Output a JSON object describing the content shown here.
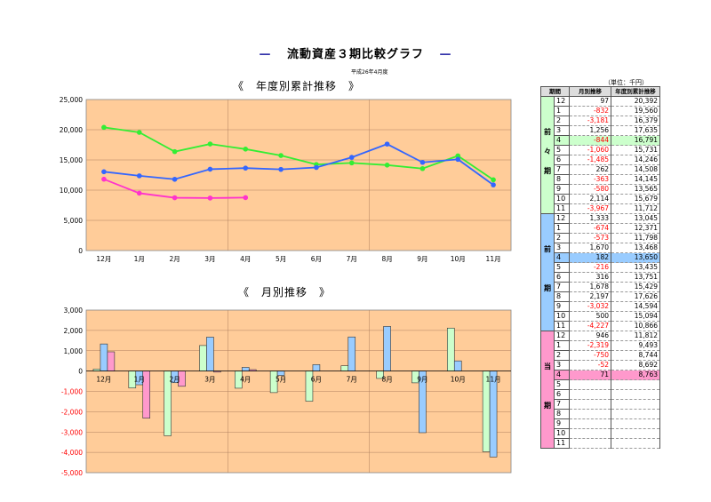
{
  "title": "流動資産３期比較グラフ",
  "title_bar": "—",
  "date_label": "平成26年4月度",
  "unit_label": "（単位：千円）",
  "colors": {
    "plot_bg": "#ffcc99",
    "current": "#ff33cc",
    "prev": "#3366ff",
    "prev2": "#33ee33",
    "prev2_fill": "#ccffcc",
    "prev_fill": "#99ccff",
    "current_fill": "#ff99cc"
  },
  "chart_data": [
    {
      "type": "line",
      "title": "《　年度別累計推移　》",
      "categories": [
        "12月",
        "1月",
        "2月",
        "3月",
        "4月",
        "5月",
        "6月",
        "7月",
        "8月",
        "9月",
        "10月",
        "11月"
      ],
      "ylim": [
        0,
        25000
      ],
      "yticks": [
        "0",
        "5,000",
        "10,000",
        "15,000",
        "20,000",
        "25,000"
      ],
      "grid": true,
      "series": [
        {
          "key": "prev2",
          "values": [
            20392,
            19560,
            16379,
            17635,
            16791,
            15731,
            14246,
            14508,
            14145,
            13565,
            15679,
            11712
          ]
        },
        {
          "key": "prev",
          "values": [
            13045,
            12371,
            11798,
            13468,
            13650,
            13435,
            13751,
            15429,
            17626,
            14594,
            15094,
            10866
          ]
        },
        {
          "key": "current",
          "values": [
            11812,
            9493,
            8744,
            8692,
            8763,
            null,
            null,
            null,
            null,
            null,
            null,
            null
          ]
        }
      ]
    },
    {
      "type": "bar",
      "title": "《　月別推移　》",
      "categories": [
        "12月",
        "1月",
        "2月",
        "3月",
        "4月",
        "5月",
        "6月",
        "7月",
        "8月",
        "9月",
        "10月",
        "11月"
      ],
      "ylim": [
        -5000,
        3000
      ],
      "yticks": [
        "-5,000",
        "-4,000",
        "-3,000",
        "-2,000",
        "-1,000",
        "0",
        "1,000",
        "2,000",
        "3,000"
      ],
      "grid": true,
      "series": [
        {
          "key": "prev2",
          "values": [
            97,
            -832,
            -3181,
            1256,
            -844,
            -1060,
            -1485,
            262,
            -363,
            -580,
            2114,
            -3967
          ]
        },
        {
          "key": "prev",
          "values": [
            1333,
            -674,
            -573,
            1670,
            182,
            -216,
            316,
            1678,
            2197,
            -3032,
            500,
            -4227
          ]
        },
        {
          "key": "current",
          "values": [
            946,
            -2319,
            -750,
            -52,
            71,
            null,
            null,
            null,
            null,
            null,
            null,
            null
          ]
        }
      ]
    }
  ],
  "table": {
    "headers": [
      "期間",
      "月別推移",
      "年度別累計推移"
    ],
    "groups": [
      {
        "label": [
          "前",
          "々",
          "期"
        ],
        "color": "#ccffcc",
        "highlight": "#ccffcc",
        "rows": [
          [
            "12",
            "97",
            "20,392"
          ],
          [
            "1",
            "-832",
            "19,560"
          ],
          [
            "2",
            "-3,181",
            "16,379"
          ],
          [
            "3",
            "1,256",
            "17,635"
          ],
          [
            "4",
            "-844",
            "16,791"
          ],
          [
            "5",
            "-1,060",
            "15,731"
          ],
          [
            "6",
            "-1,485",
            "14,246"
          ],
          [
            "7",
            "262",
            "14,508"
          ],
          [
            "8",
            "-363",
            "14,145"
          ],
          [
            "9",
            "-580",
            "13,565"
          ],
          [
            "10",
            "2,114",
            "15,679"
          ],
          [
            "11",
            "-3,967",
            "11,712"
          ]
        ]
      },
      {
        "label": [
          "前",
          "",
          "期"
        ],
        "color": "#99ccff",
        "highlight": "#99ccff",
        "rows": [
          [
            "12",
            "1,333",
            "13,045"
          ],
          [
            "1",
            "-674",
            "12,371"
          ],
          [
            "2",
            "-573",
            "11,798"
          ],
          [
            "3",
            "1,670",
            "13,468"
          ],
          [
            "4",
            "182",
            "13,650"
          ],
          [
            "5",
            "-216",
            "13,435"
          ],
          [
            "6",
            "316",
            "13,751"
          ],
          [
            "7",
            "1,678",
            "15,429"
          ],
          [
            "8",
            "2,197",
            "17,626"
          ],
          [
            "9",
            "-3,032",
            "14,594"
          ],
          [
            "10",
            "500",
            "15,094"
          ],
          [
            "11",
            "-4,227",
            "10,866"
          ]
        ]
      },
      {
        "label": [
          "当",
          "",
          "期"
        ],
        "color": "#ff99cc",
        "highlight": "#ff99cc",
        "rows": [
          [
            "12",
            "946",
            "11,812"
          ],
          [
            "1",
            "-2,319",
            "9,493"
          ],
          [
            "2",
            "-750",
            "8,744"
          ],
          [
            "3",
            "-52",
            "8,692"
          ],
          [
            "4",
            "71",
            "8,763"
          ],
          [
            "5",
            "",
            ""
          ],
          [
            "6",
            "",
            ""
          ],
          [
            "7",
            "",
            ""
          ],
          [
            "8",
            "",
            ""
          ],
          [
            "9",
            "",
            ""
          ],
          [
            "10",
            "",
            ""
          ],
          [
            "11",
            "",
            ""
          ]
        ]
      }
    ]
  }
}
